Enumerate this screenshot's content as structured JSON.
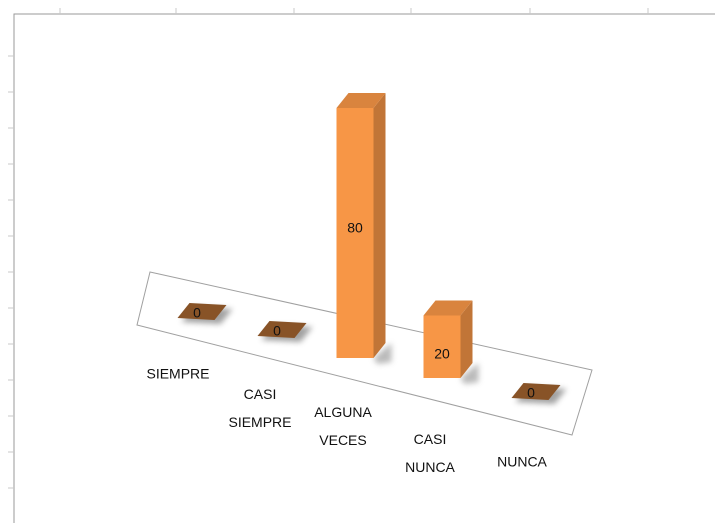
{
  "chart_data": {
    "type": "bar3d",
    "categories": [
      "SIEMPRE",
      "CASI SIEMPRE",
      "ALGUNA VECES",
      "CASI NUNCA",
      "NUNCA"
    ],
    "values": [
      0,
      0,
      80,
      20,
      0
    ],
    "color": "#f79646"
  }
}
